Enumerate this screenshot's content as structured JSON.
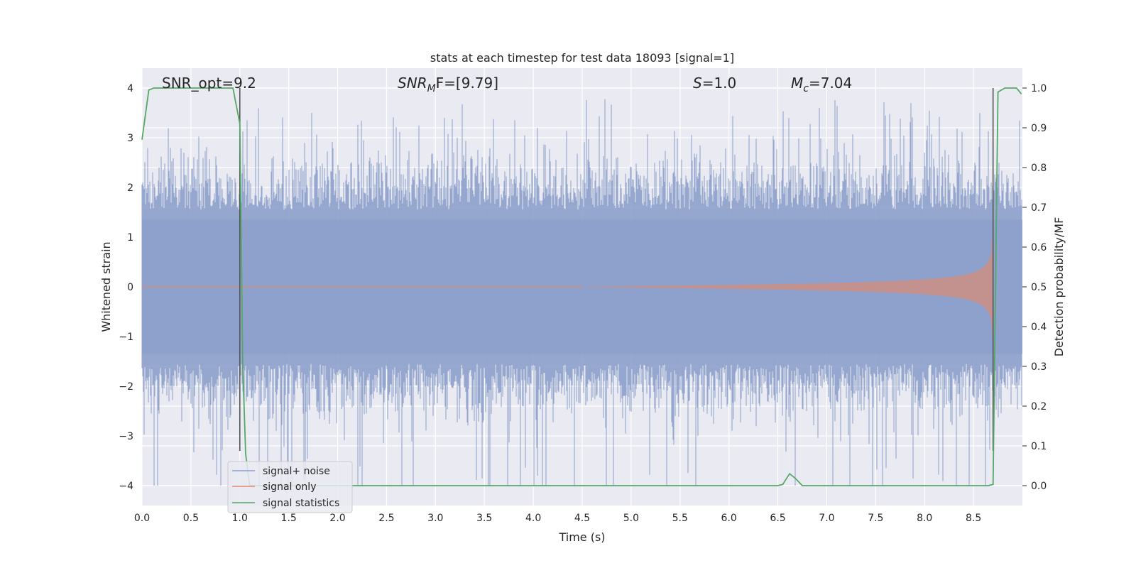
{
  "chart_data": {
    "type": "line",
    "title": "stats at each timestep for test data 18093 [signal=1]",
    "xlabel": "Time (s)",
    "ylabel": "Whitened strain",
    "y2label": "Detection probability/MF",
    "xlim": [
      0.0,
      9.0
    ],
    "ylim": [
      -4.4,
      4.4
    ],
    "y2lim": [
      -0.05,
      1.05
    ],
    "xticks": [
      "0.0",
      "0.5",
      "1.0",
      "1.5",
      "2.0",
      "2.5",
      "3.0",
      "3.5",
      "4.0",
      "4.5",
      "5.0",
      "5.5",
      "6.0",
      "6.5",
      "7.0",
      "7.5",
      "8.0",
      "8.5"
    ],
    "xtick_values": [
      0.0,
      0.5,
      1.0,
      1.5,
      2.0,
      2.5,
      3.0,
      3.5,
      4.0,
      4.5,
      5.0,
      5.5,
      6.0,
      6.5,
      7.0,
      7.5,
      8.0,
      8.5
    ],
    "yticks": [
      "−4",
      "−3",
      "−2",
      "−1",
      "0",
      "1",
      "2",
      "3",
      "4"
    ],
    "ytick_values": [
      -4,
      -3,
      -2,
      -1,
      0,
      1,
      2,
      3,
      4
    ],
    "y2ticks": [
      "0.0",
      "0.1",
      "0.2",
      "0.3",
      "0.4",
      "0.5",
      "0.6",
      "0.7",
      "0.8",
      "0.9",
      "1.0"
    ],
    "y2tick_values": [
      0.0,
      0.1,
      0.2,
      0.3,
      0.4,
      0.5,
      0.6,
      0.7,
      0.8,
      0.9,
      1.0
    ],
    "grid": true,
    "legend_position": "lower-left",
    "annotations": {
      "snr_opt": "SNR_opt=9.2",
      "snr_mf_base": "SNR",
      "snr_mf_sub": "M",
      "snr_mf_rest": "F=[9.79]",
      "s_base": "S",
      "s_rest": "=1.0",
      "mc_base": "M",
      "mc_sub": "c",
      "mc_rest": "=7.04"
    },
    "vertical_markers": [
      1.0,
      8.7
    ],
    "noise_envelope": {
      "description_free": true,
      "typical_max": 2.0,
      "peak_max": 4.0,
      "typical_min": -2.0,
      "peak_min": -4.0
    },
    "series": [
      {
        "name": "signal+ noise",
        "color": "#8da0cb",
        "axis": "left",
        "style": "noise"
      },
      {
        "name": "signal only",
        "color": "#e08b6f",
        "axis": "left",
        "style": "chirp",
        "chirp_start": 4.5,
        "chirp_end": 8.7,
        "chirp_peak_amplitude": 1.15
      },
      {
        "name": "signal statistics",
        "color": "#55a868",
        "axis": "right",
        "x": [
          0.0,
          0.07,
          0.12,
          0.2,
          0.3,
          0.5,
          0.7,
          0.85,
          0.93,
          1.0,
          1.03,
          1.06,
          1.1,
          1.2,
          2.0,
          3.0,
          4.0,
          5.0,
          6.0,
          6.5,
          6.55,
          6.62,
          6.68,
          6.75,
          7.0,
          7.5,
          8.0,
          8.5,
          8.65,
          8.7,
          8.75,
          8.82,
          8.88,
          8.94,
          8.99
        ],
        "y": [
          0.87,
          0.995,
          1.0,
          1.0,
          1.0,
          1.0,
          1.0,
          1.0,
          1.0,
          0.91,
          0.3,
          0.08,
          0.0,
          0.0,
          0.0,
          0.0,
          0.0,
          0.0,
          0.0,
          0.0,
          0.003,
          0.03,
          0.018,
          0.0,
          0.0,
          0.0,
          0.0,
          0.0,
          0.0,
          0.003,
          0.99,
          1.0,
          1.0,
          1.0,
          0.985
        ]
      }
    ]
  }
}
